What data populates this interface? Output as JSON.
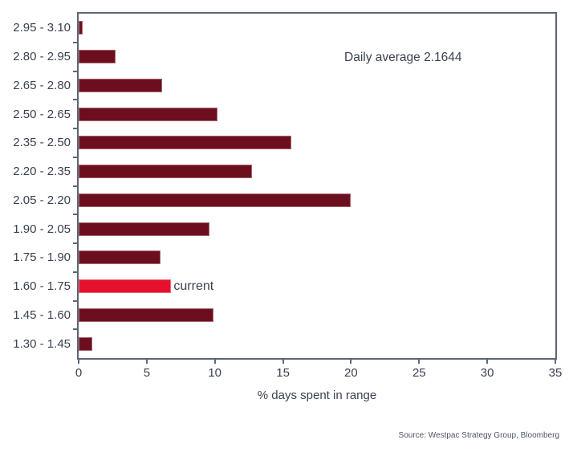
{
  "chart_data": {
    "type": "bar",
    "orientation": "horizontal",
    "title": "",
    "annotation": "Daily average 2.1644",
    "xlabel": "% days spent in range",
    "xlim": [
      0,
      35
    ],
    "xticks": [
      0,
      5,
      10,
      15,
      20,
      25,
      30,
      35
    ],
    "grid": false,
    "legend": "none",
    "categories": [
      "2.95 - 3.10",
      "2.80 - 2.95",
      "2.65 - 2.80",
      "2.50 - 2.65",
      "2.35 - 2.50",
      "2.20 - 2.35",
      "2.05 - 2.20",
      "1.90 - 2.05",
      "1.75 - 1.90",
      "1.60 - 1.75",
      "1.45 - 1.60",
      "1.30 - 1.45"
    ],
    "values": [
      0.3,
      2.7,
      6.1,
      10.2,
      15.6,
      12.7,
      20.0,
      9.6,
      6.0,
      6.8,
      9.9,
      1.0
    ],
    "highlight_index": 9,
    "highlight_label": "current",
    "colors": {
      "bar": "#6d0e1e",
      "highlight": "#e5112d",
      "axis": "#5d6673",
      "text": "#3a4150",
      "source_text": "#4d5563"
    }
  },
  "footer": {
    "source": "Source: Westpac Strategy Group, Bloomberg"
  }
}
